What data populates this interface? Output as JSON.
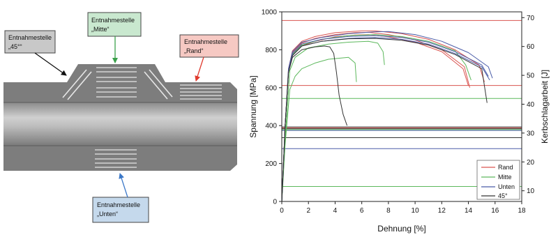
{
  "diagram": {
    "callouts": [
      {
        "id": "diag45",
        "line1": "Entnahmestelle",
        "line2": "„45°“",
        "fill": "#c8c8c8"
      },
      {
        "id": "mitte",
        "line1": "Entnahmestelle",
        "line2": "„Mitte“",
        "fill": "#c9e8cf"
      },
      {
        "id": "rand",
        "line1": "Entnahmestelle",
        "line2": "„Rand“",
        "fill": "#f6c9c3"
      },
      {
        "id": "unten",
        "line1": "Entnahmestelle",
        "line2": "„Unten“",
        "fill": "#c5d9ec"
      }
    ]
  },
  "colors": {
    "rand": "#d9534f",
    "mitte": "#5cb85c",
    "unten": "#4a5ca8",
    "d45": "#333333"
  },
  "chart_data": {
    "type": "line",
    "xlabel": "Dehnung [%]",
    "ylabel": "Spannung [MPa]",
    "y2label": "Kerbschlagarbeit [J]",
    "xlim": [
      0,
      18
    ],
    "ylim": [
      0,
      1000
    ],
    "y2lim": [
      6.3,
      72
    ],
    "x_ticks": [
      0,
      2,
      4,
      6,
      8,
      10,
      12,
      14,
      16,
      18
    ],
    "y_ticks": [
      0,
      200,
      400,
      600,
      800,
      1000
    ],
    "y2_ticks": [
      10,
      20,
      30,
      40,
      50,
      60,
      70
    ],
    "legend": {
      "position": "bottom-right",
      "entries": [
        {
          "label": "Rand",
          "color": "#d9534f"
        },
        {
          "label": "Mitte",
          "color": "#5cb85c"
        },
        {
          "label": "Unten",
          "color": "#4a5ca8"
        },
        {
          "label": "45°",
          "color": "#333333"
        }
      ]
    },
    "series": [
      {
        "group": "rand",
        "color": "#d9534f",
        "x": [
          0,
          0.25,
          0.5,
          0.8,
          1.5,
          2.5,
          4,
          5.5,
          6.5,
          8,
          10,
          12,
          13.6,
          14
        ],
        "y": [
          0,
          400,
          680,
          770,
          820,
          845,
          868,
          878,
          880,
          868,
          840,
          790,
          700,
          610
        ]
      },
      {
        "group": "rand",
        "color": "#d9534f",
        "x": [
          0,
          0.25,
          0.5,
          0.8,
          1.5,
          2.5,
          4,
          5.5,
          6.5,
          8,
          10,
          12,
          13.7,
          14.1
        ],
        "y": [
          0,
          400,
          690,
          785,
          835,
          860,
          880,
          890,
          892,
          880,
          852,
          800,
          710,
          600
        ]
      },
      {
        "group": "rand",
        "color": "#d9534f",
        "x": [
          0,
          0.25,
          0.5,
          0.8,
          1.5,
          2.5,
          4,
          6,
          7,
          9,
          11,
          13,
          14.8,
          15.2
        ],
        "y": [
          0,
          400,
          700,
          795,
          845,
          870,
          890,
          900,
          900,
          885,
          855,
          800,
          720,
          630
        ]
      },
      {
        "group": "mitte",
        "color": "#5cb85c",
        "x": [
          0,
          0.25,
          0.6,
          1,
          1.5,
          2.5,
          3.5,
          5,
          5.5,
          5.6
        ],
        "y": [
          0,
          300,
          590,
          660,
          700,
          730,
          750,
          760,
          730,
          630
        ]
      },
      {
        "group": "mitte",
        "color": "#5cb85c",
        "x": [
          0,
          0.25,
          0.6,
          1,
          2,
          3.5,
          5,
          6.5,
          7.2,
          7.6,
          7.7
        ],
        "y": [
          0,
          330,
          690,
          760,
          810,
          830,
          840,
          845,
          835,
          790,
          720
        ]
      },
      {
        "group": "mitte",
        "color": "#5cb85c",
        "x": [
          0,
          0.25,
          0.5,
          0.8,
          1.5,
          3,
          5,
          7,
          9,
          11,
          13,
          13.8,
          14.2
        ],
        "y": [
          0,
          400,
          690,
          775,
          825,
          855,
          875,
          880,
          870,
          845,
          795,
          720,
          640
        ]
      },
      {
        "group": "unten",
        "color": "#4a5ca8",
        "x": [
          0,
          0.25,
          0.5,
          0.8,
          1.5,
          3,
          5,
          7,
          9,
          11,
          13,
          15,
          15.5
        ],
        "y": [
          0,
          400,
          690,
          780,
          830,
          855,
          870,
          875,
          865,
          840,
          790,
          720,
          660
        ]
      },
      {
        "group": "unten",
        "color": "#4a5ca8",
        "x": [
          0,
          0.25,
          0.5,
          0.8,
          1.5,
          3,
          5,
          7,
          9,
          11,
          13,
          15,
          15.6
        ],
        "y": [
          0,
          400,
          680,
          770,
          820,
          845,
          860,
          865,
          855,
          830,
          780,
          710,
          640
        ]
      },
      {
        "group": "unten",
        "color": "#4a5ca8",
        "x": [
          0,
          0.25,
          0.5,
          0.8,
          1.5,
          3,
          5,
          7,
          8,
          10,
          12,
          14,
          15.5,
          15.8
        ],
        "y": [
          0,
          400,
          700,
          790,
          840,
          865,
          885,
          895,
          896,
          880,
          845,
          785,
          710,
          650
        ]
      },
      {
        "group": "d45",
        "color": "#333333",
        "x": [
          0,
          0.25,
          0.5,
          0.8,
          1.5,
          2.5,
          3.2,
          3.6,
          3.9,
          4.1,
          4.3,
          4.6,
          4.9
        ],
        "y": [
          0,
          400,
          680,
          760,
          800,
          815,
          820,
          815,
          780,
          680,
          560,
          460,
          400
        ]
      },
      {
        "group": "d45",
        "color": "#333333",
        "x": [
          0,
          0.25,
          0.5,
          0.8,
          1.5,
          3,
          5,
          7,
          9,
          11,
          13,
          15,
          15.4
        ],
        "y": [
          0,
          400,
          680,
          770,
          820,
          845,
          858,
          860,
          850,
          825,
          775,
          700,
          520
        ]
      }
    ],
    "impact_lines": [
      {
        "group": "rand",
        "color": "#d9534f",
        "y2": 69
      },
      {
        "group": "rand",
        "color": "#d9534f",
        "y2": 46.5
      },
      {
        "group": "rand",
        "color": "#d9534f",
        "y2": 31.8
      },
      {
        "group": "mitte",
        "color": "#5cb85c",
        "y2": 42
      },
      {
        "group": "mitte",
        "color": "#5cb85c",
        "y2": 31.2
      },
      {
        "group": "mitte",
        "color": "#5cb85c",
        "y2": 11.5
      },
      {
        "group": "unten",
        "color": "#4a5ca8",
        "y2": 30.9
      },
      {
        "group": "unten",
        "color": "#4a5ca8",
        "y2": 24.6
      },
      {
        "group": "d45",
        "color": "#333333",
        "y2": 32.1
      },
      {
        "group": "d45",
        "color": "#333333",
        "y2": 31.5
      },
      {
        "group": "d45",
        "color": "#333333",
        "y2": 28.4
      }
    ]
  }
}
